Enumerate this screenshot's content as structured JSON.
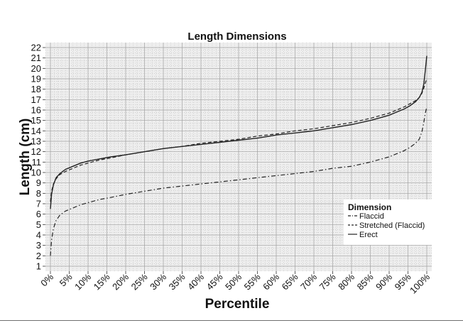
{
  "chart_data": {
    "type": "line",
    "title": "Length Dimensions",
    "xlabel": "Percentile",
    "ylabel": "Length (cm)",
    "xlim": [
      0,
      100
    ],
    "ylim": [
      1,
      22
    ],
    "x_ticks": [
      0,
      5,
      10,
      15,
      20,
      25,
      30,
      35,
      40,
      45,
      50,
      55,
      60,
      65,
      70,
      75,
      80,
      85,
      90,
      95,
      100
    ],
    "x_tick_labels": [
      "0%",
      "5%",
      "10%",
      "15%",
      "20%",
      "25%",
      "30%",
      "35%",
      "40%",
      "45%",
      "50%",
      "55%",
      "60%",
      "65%",
      "70%",
      "75%",
      "80%",
      "85%",
      "90%",
      "95%",
      "100%"
    ],
    "y_ticks": [
      1,
      2,
      3,
      4,
      5,
      6,
      7,
      8,
      9,
      10,
      11,
      12,
      13,
      14,
      15,
      16,
      17,
      18,
      19,
      20,
      21,
      22
    ],
    "grid": true,
    "legend": {
      "title": "Dimension",
      "position": "bottom-right"
    },
    "series": [
      {
        "name": "Flaccid",
        "style": "dash-dot",
        "color": "#222222",
        "x": [
          0,
          0.3,
          0.8,
          1.5,
          2.5,
          4,
          6,
          8,
          10,
          13,
          16,
          20,
          25,
          30,
          35,
          40,
          45,
          50,
          55,
          60,
          65,
          70,
          75,
          80,
          85,
          88,
          90,
          92,
          94,
          95.5,
          97,
          98,
          98.7,
          99.2,
          99.6,
          100
        ],
        "y": [
          2.0,
          3.5,
          4.6,
          5.4,
          5.9,
          6.3,
          6.6,
          6.9,
          7.1,
          7.4,
          7.6,
          7.9,
          8.2,
          8.5,
          8.7,
          8.9,
          9.1,
          9.3,
          9.5,
          9.7,
          9.9,
          10.1,
          10.4,
          10.6,
          11.0,
          11.3,
          11.5,
          11.8,
          12.1,
          12.4,
          12.8,
          13.2,
          13.9,
          14.8,
          15.7,
          16.3
        ]
      },
      {
        "name": "Stretched (Flaccid)",
        "style": "dashed",
        "color": "#222222",
        "x": [
          0,
          0.3,
          0.8,
          1.5,
          2.5,
          4,
          6,
          8,
          10,
          13,
          16,
          20,
          25,
          30,
          35,
          40,
          45,
          50,
          55,
          60,
          65,
          70,
          75,
          80,
          85,
          88,
          90,
          92,
          94,
          95.5,
          97,
          98,
          98.7,
          99.2,
          99.6,
          100
        ],
        "y": [
          7.2,
          8.2,
          8.9,
          9.4,
          9.8,
          10.1,
          10.4,
          10.7,
          10.9,
          11.2,
          11.4,
          11.7,
          12.0,
          12.3,
          12.5,
          12.8,
          13.0,
          13.2,
          13.5,
          13.7,
          14.0,
          14.2,
          14.5,
          14.8,
          15.2,
          15.5,
          15.7,
          16.0,
          16.3,
          16.6,
          16.9,
          17.2,
          17.6,
          18.1,
          18.6,
          19.0
        ]
      },
      {
        "name": "Erect",
        "style": "solid",
        "color": "#222222",
        "x": [
          0,
          0.3,
          0.8,
          1.5,
          2.5,
          4,
          6,
          8,
          10,
          13,
          16,
          20,
          25,
          30,
          35,
          40,
          45,
          50,
          55,
          60,
          65,
          70,
          75,
          80,
          85,
          88,
          90,
          92,
          94,
          95.5,
          97,
          98,
          98.7,
          99.2,
          99.6,
          100
        ],
        "y": [
          6.5,
          7.9,
          8.8,
          9.5,
          9.9,
          10.3,
          10.6,
          10.9,
          11.1,
          11.3,
          11.5,
          11.7,
          12.0,
          12.3,
          12.5,
          12.7,
          12.9,
          13.1,
          13.3,
          13.6,
          13.8,
          14.0,
          14.3,
          14.6,
          15.0,
          15.3,
          15.5,
          15.8,
          16.1,
          16.4,
          16.8,
          17.2,
          17.7,
          18.5,
          19.8,
          21.2
        ]
      }
    ]
  }
}
